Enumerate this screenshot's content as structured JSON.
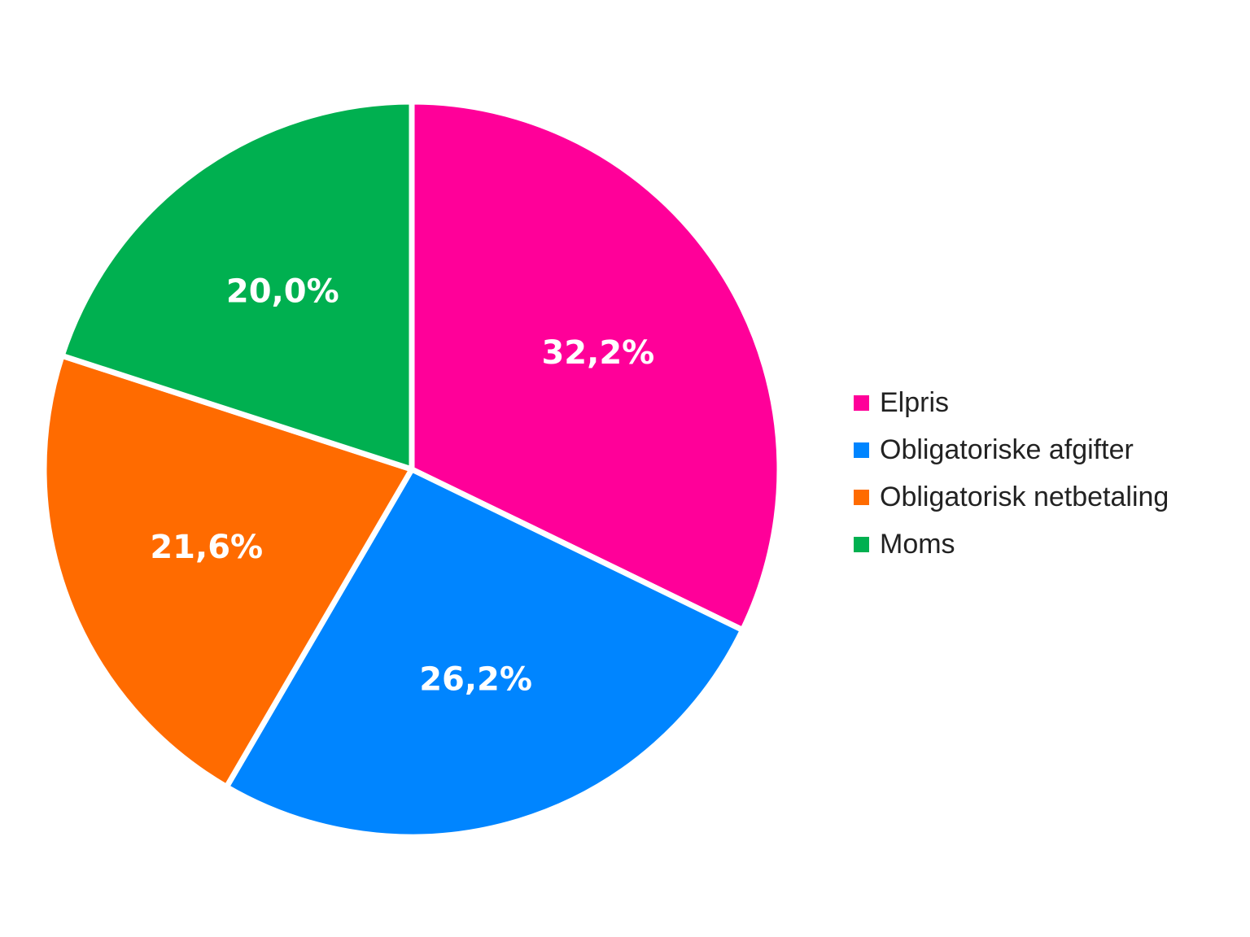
{
  "chart_data": {
    "type": "pie",
    "title": "",
    "legend_position": "right",
    "start_angle_deg": 0,
    "direction": "clockwise",
    "slices": [
      {
        "name": "Elpris",
        "value": 32.2,
        "label": "32,2%",
        "color": "#ff0099"
      },
      {
        "name": "Obligatoriske afgifter",
        "value": 26.2,
        "label": "26,2%",
        "color": "#0085ff"
      },
      {
        "name": "Obligatorisk netbetaling",
        "value": 21.6,
        "label": "21,6%",
        "color": "#ff6b00"
      },
      {
        "name": "Moms",
        "value": 20.0,
        "label": "20,0%",
        "color": "#00b050"
      }
    ]
  }
}
